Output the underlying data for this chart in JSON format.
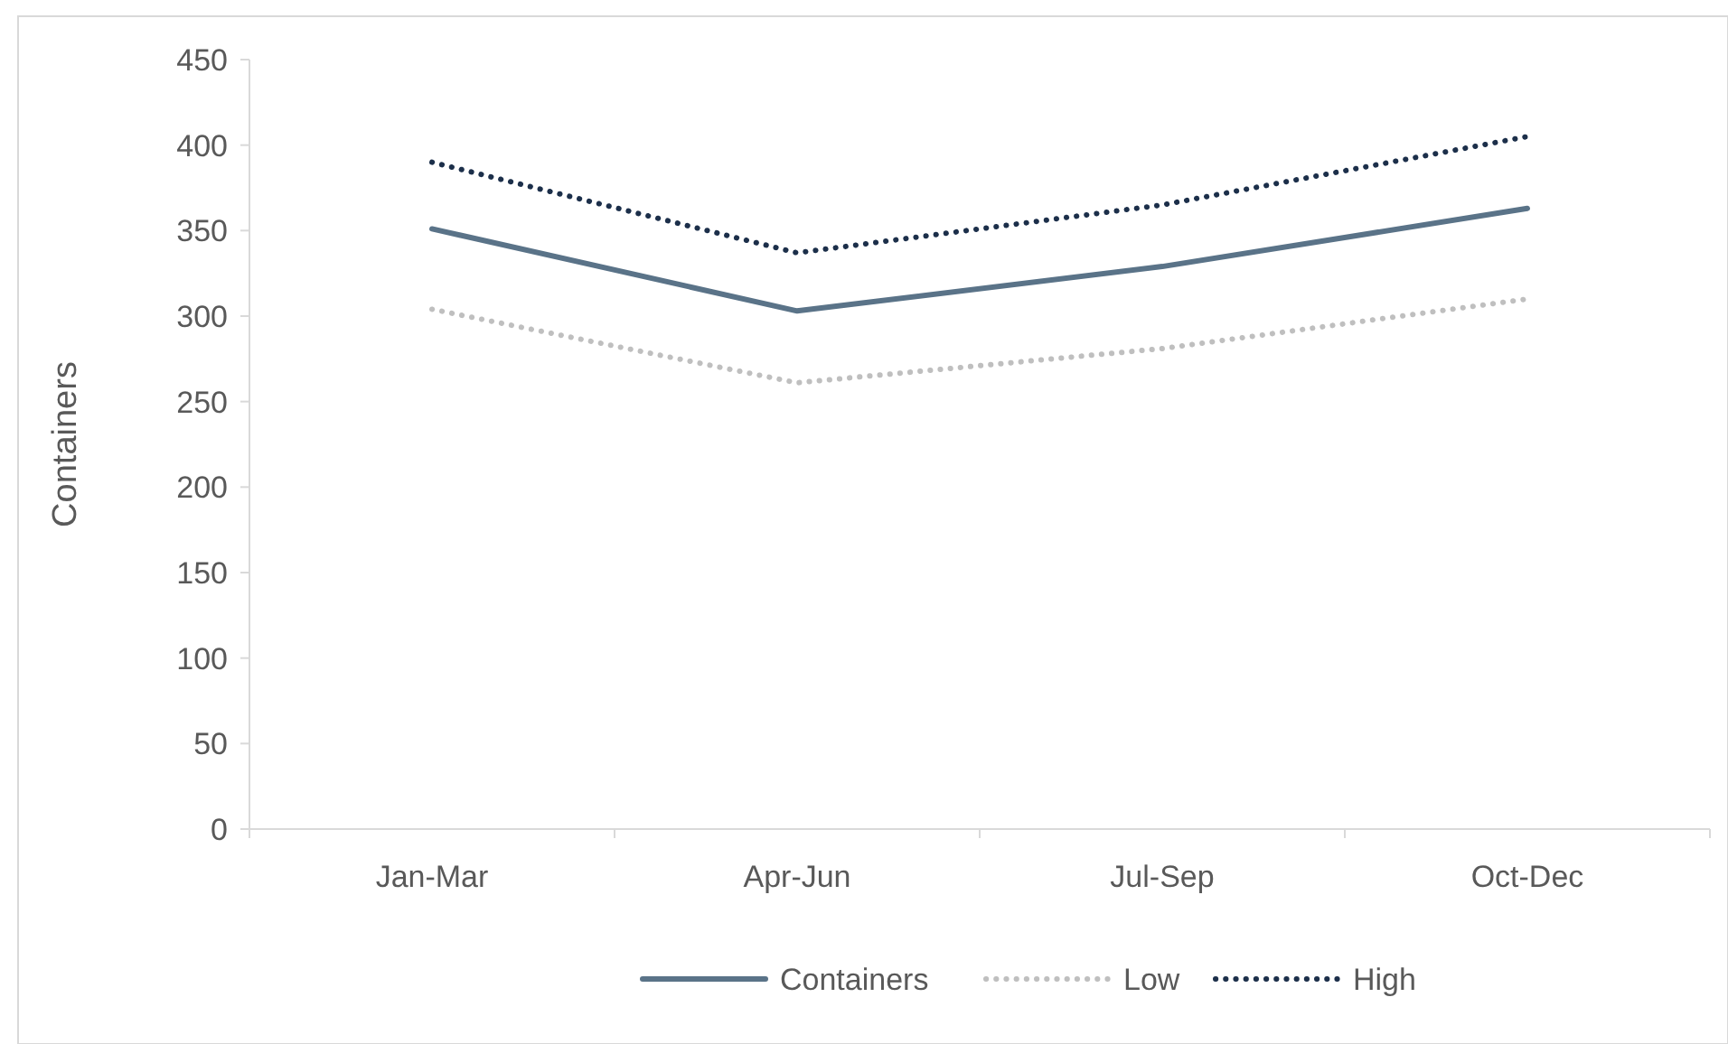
{
  "chart_data": {
    "type": "line",
    "ylabel": "Containers",
    "categories": [
      "Jan-Mar",
      "Apr-Jun",
      "Jul-Sep",
      "Oct-Dec"
    ],
    "series": [
      {
        "name": "Containers",
        "color": "#5a7388",
        "values": [
          351,
          303,
          329,
          363
        ],
        "line_style": "solid"
      },
      {
        "name": "Low",
        "color": "#bfbfbf",
        "values": [
          304,
          261,
          281,
          310
        ],
        "line_style": "dotted"
      },
      {
        "name": "High",
        "color": "#1c2f4a",
        "values": [
          390,
          337,
          365,
          405
        ],
        "line_style": "dotted"
      }
    ],
    "ylim": [
      0,
      450
    ],
    "yticks": [
      0,
      50,
      100,
      150,
      200,
      250,
      300,
      350,
      400,
      450
    ],
    "grid": false,
    "legend": "bottom"
  }
}
